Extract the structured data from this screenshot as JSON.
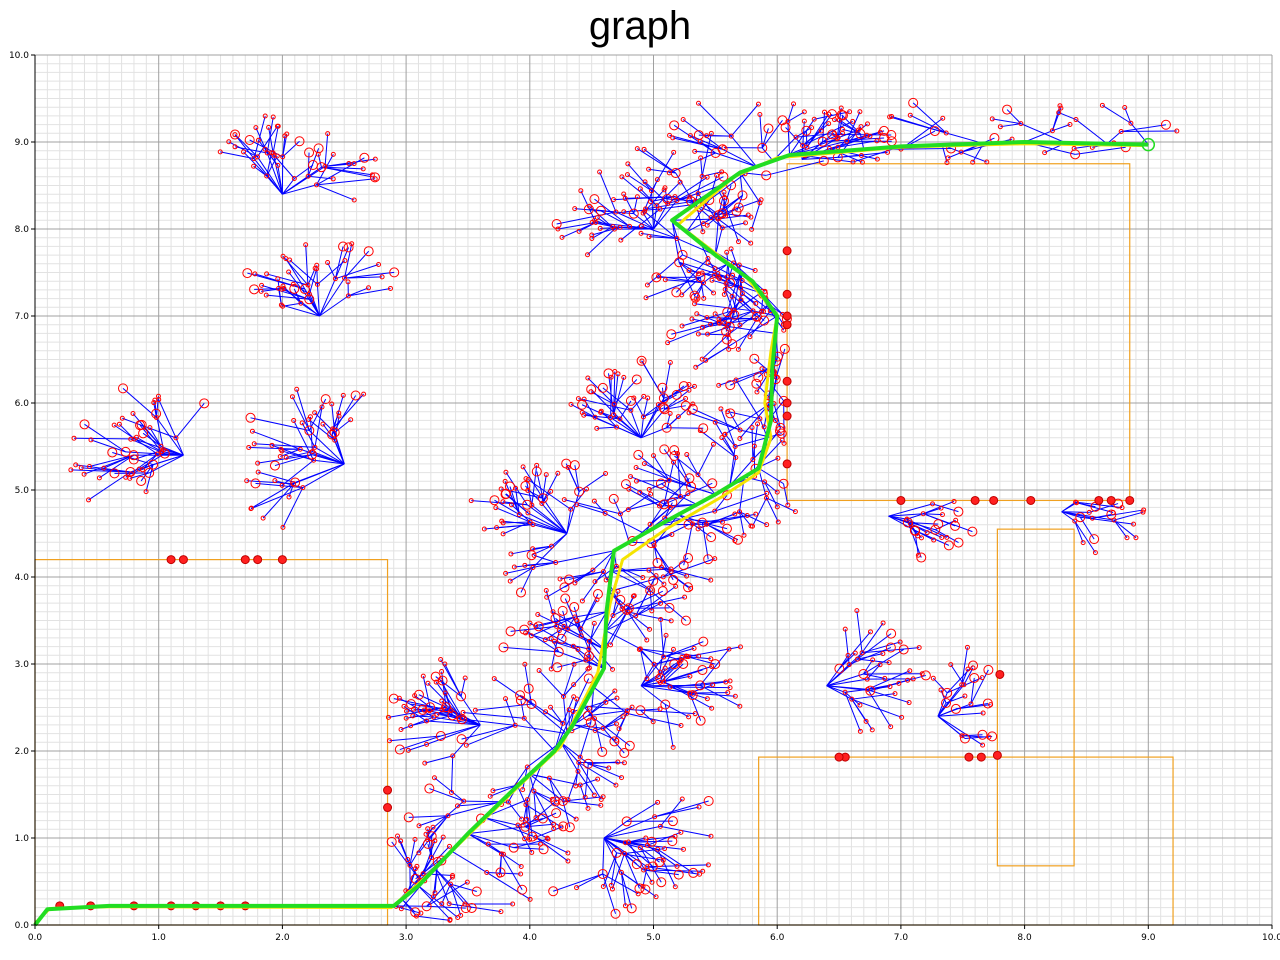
{
  "chart_data": {
    "type": "scatter",
    "title": "graph",
    "xlim": [
      0,
      10
    ],
    "ylim": [
      0,
      10
    ],
    "xticks": [
      "0.0",
      "1.0",
      "2.0",
      "3.0",
      "4.0",
      "5.0",
      "6.0",
      "7.0",
      "8.0",
      "9.0",
      "10.0"
    ],
    "yticks": [
      "0.0",
      "1.0",
      "2.0",
      "3.0",
      "4.0",
      "5.0",
      "6.0",
      "7.0",
      "8.0",
      "9.0",
      "10.0"
    ],
    "grid": true,
    "obstacles": [
      {
        "x0": 0.0,
        "y0": 0.0,
        "x1": 2.85,
        "y1": 4.2
      },
      {
        "x0": 6.08,
        "y0": 4.88,
        "x1": 8.85,
        "y1": 8.75
      },
      {
        "x0": 7.78,
        "y0": 0.68,
        "x1": 8.4,
        "y1": 4.55
      },
      {
        "x0": 5.85,
        "y0": 0.0,
        "x1": 9.2,
        "y1": 1.93
      }
    ],
    "path_green": [
      [
        0.0,
        0.0
      ],
      [
        0.1,
        0.18
      ],
      [
        0.6,
        0.22
      ],
      [
        1.5,
        0.22
      ],
      [
        2.9,
        0.22
      ],
      [
        3.1,
        0.45
      ],
      [
        3.5,
        1.05
      ],
      [
        3.9,
        1.6
      ],
      [
        4.2,
        2.0
      ],
      [
        4.35,
        2.3
      ],
      [
        4.6,
        2.95
      ],
      [
        4.62,
        3.6
      ],
      [
        4.68,
        4.3
      ],
      [
        5.05,
        4.6
      ],
      [
        5.5,
        4.95
      ],
      [
        5.85,
        5.25
      ],
      [
        5.95,
        5.8
      ],
      [
        5.96,
        6.4
      ],
      [
        6.0,
        7.0
      ],
      [
        5.8,
        7.4
      ],
      [
        5.5,
        7.7
      ],
      [
        5.15,
        8.1
      ],
      [
        5.7,
        8.65
      ],
      [
        6.1,
        8.85
      ],
      [
        7.0,
        8.95
      ],
      [
        8.0,
        9.0
      ],
      [
        9.0,
        8.97
      ]
    ],
    "path_yellow": [
      [
        0.0,
        0.02
      ],
      [
        0.12,
        0.19
      ],
      [
        0.6,
        0.21
      ],
      [
        2.88,
        0.2
      ],
      [
        3.12,
        0.5
      ],
      [
        3.55,
        1.1
      ],
      [
        3.95,
        1.65
      ],
      [
        4.25,
        2.05
      ],
      [
        4.55,
        2.9
      ],
      [
        4.65,
        3.7
      ],
      [
        4.75,
        4.2
      ],
      [
        5.1,
        4.55
      ],
      [
        5.55,
        4.92
      ],
      [
        5.85,
        5.2
      ],
      [
        5.95,
        5.6
      ],
      [
        5.9,
        6.0
      ],
      [
        5.95,
        6.6
      ],
      [
        6.0,
        7.0
      ],
      [
        5.75,
        7.45
      ],
      [
        5.2,
        8.05
      ],
      [
        5.65,
        8.6
      ],
      [
        6.0,
        8.82
      ],
      [
        7.0,
        8.94
      ],
      [
        8.0,
        8.98
      ],
      [
        8.95,
        8.96
      ]
    ],
    "blocked_nodes": [
      [
        0.2,
        0.22
      ],
      [
        0.45,
        0.22
      ],
      [
        0.8,
        0.22
      ],
      [
        1.1,
        0.22
      ],
      [
        1.3,
        0.22
      ],
      [
        1.5,
        0.22
      ],
      [
        1.7,
        0.22
      ],
      [
        1.1,
        4.2
      ],
      [
        1.2,
        4.2
      ],
      [
        1.7,
        4.2
      ],
      [
        1.8,
        4.2
      ],
      [
        2.0,
        4.2
      ],
      [
        2.85,
        1.35
      ],
      [
        2.85,
        1.55
      ],
      [
        6.08,
        7.75
      ],
      [
        6.08,
        7.25
      ],
      [
        6.08,
        7.0
      ],
      [
        6.08,
        6.9
      ],
      [
        6.08,
        6.25
      ],
      [
        6.08,
        6.0
      ],
      [
        6.08,
        5.85
      ],
      [
        6.08,
        5.3
      ],
      [
        7.0,
        4.88
      ],
      [
        7.6,
        4.88
      ],
      [
        7.75,
        4.88
      ],
      [
        8.05,
        4.88
      ],
      [
        8.6,
        4.88
      ],
      [
        8.7,
        4.88
      ],
      [
        8.85,
        4.88
      ],
      [
        6.55,
        1.93
      ],
      [
        6.5,
        1.93
      ],
      [
        7.55,
        1.93
      ],
      [
        7.65,
        1.93
      ],
      [
        7.8,
        2.88
      ],
      [
        7.78,
        1.95
      ]
    ]
  }
}
